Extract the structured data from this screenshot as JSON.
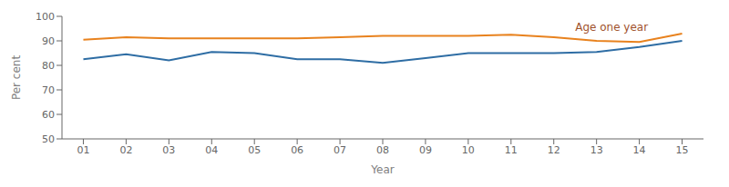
{
  "chart_data": {
    "type": "line",
    "x": [
      1,
      2,
      3,
      4,
      5,
      6,
      7,
      8,
      9,
      10,
      11,
      12,
      13,
      14,
      15
    ],
    "xlabel": "Year",
    "ylabel": "Per cent",
    "series": [
      {
        "color": "#E8821E",
        "values": [
          90.5,
          91.5,
          91.0,
          91.0,
          91.0,
          91.0,
          91.5,
          92.0,
          92.0,
          92.0,
          92.5,
          91.5,
          90.0,
          89.5,
          93.0
        ]
      },
      {
        "color": "#2E6DA4",
        "values": [
          82.5,
          84.5,
          82.0,
          85.5,
          85.0,
          82.5,
          82.5,
          81.0,
          83.0,
          85.0,
          85.0,
          85.0,
          85.5,
          87.5,
          90.0
        ]
      }
    ],
    "xlim": [
      0.5,
      15.5
    ],
    "xticks": [
      {
        "value": 1,
        "label": "01"
      },
      {
        "value": 2,
        "label": "02"
      },
      {
        "value": 3,
        "label": "03"
      },
      {
        "value": 4,
        "label": "04"
      },
      {
        "value": 5,
        "label": "05"
      },
      {
        "value": 6,
        "label": "06"
      },
      {
        "value": 7,
        "label": "07"
      },
      {
        "value": 8,
        "label": "08"
      },
      {
        "value": 9,
        "label": "09"
      },
      {
        "value": 10,
        "label": "10"
      },
      {
        "value": 11,
        "label": "11"
      },
      {
        "value": 12,
        "label": "12"
      },
      {
        "value": 13,
        "label": "13"
      },
      {
        "value": 14,
        "label": "14"
      },
      {
        "value": 15,
        "label": "15"
      }
    ],
    "ylim": [
      50,
      100
    ],
    "yticks": [
      50,
      60,
      70,
      80,
      90,
      100
    ],
    "annotations": [
      {
        "text": "Age one year",
        "x": 12.5,
        "y": 95.5,
        "color": "#A0522D"
      }
    ],
    "grid": false
  }
}
